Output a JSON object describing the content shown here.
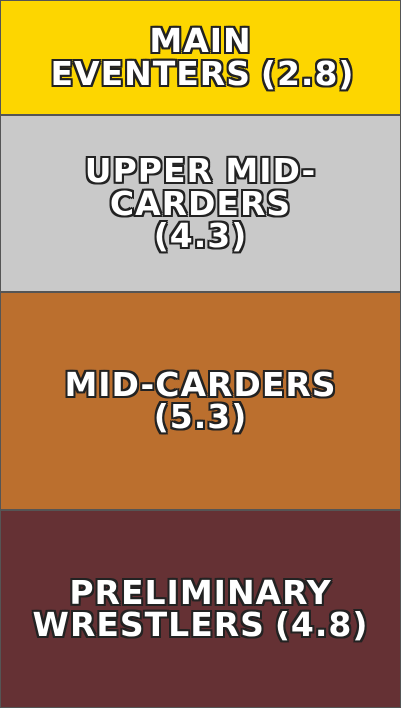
{
  "chart_data": {
    "type": "stacked_column",
    "series": [
      {
        "name": "MAIN EVENTERS",
        "color": "#fdd600",
        "values": [
          2.8
        ],
        "value_labels": [
          "(2.8)"
        ]
      },
      {
        "name": "UPPER MID-CARDERS",
        "color": "#c9c9c9",
        "values": [
          4.3
        ],
        "value_labels": [
          "(4.3)"
        ]
      },
      {
        "name": "MID-CARDERS",
        "color": "#bb6f2e",
        "values": [
          5.3
        ],
        "value_labels": [
          "(5.3)"
        ]
      },
      {
        "name": "PRELIMINARY WRESTLERS",
        "color": "#653134",
        "values": [
          4.8
        ],
        "value_labels": [
          "(4.8)"
        ]
      }
    ]
  }
}
